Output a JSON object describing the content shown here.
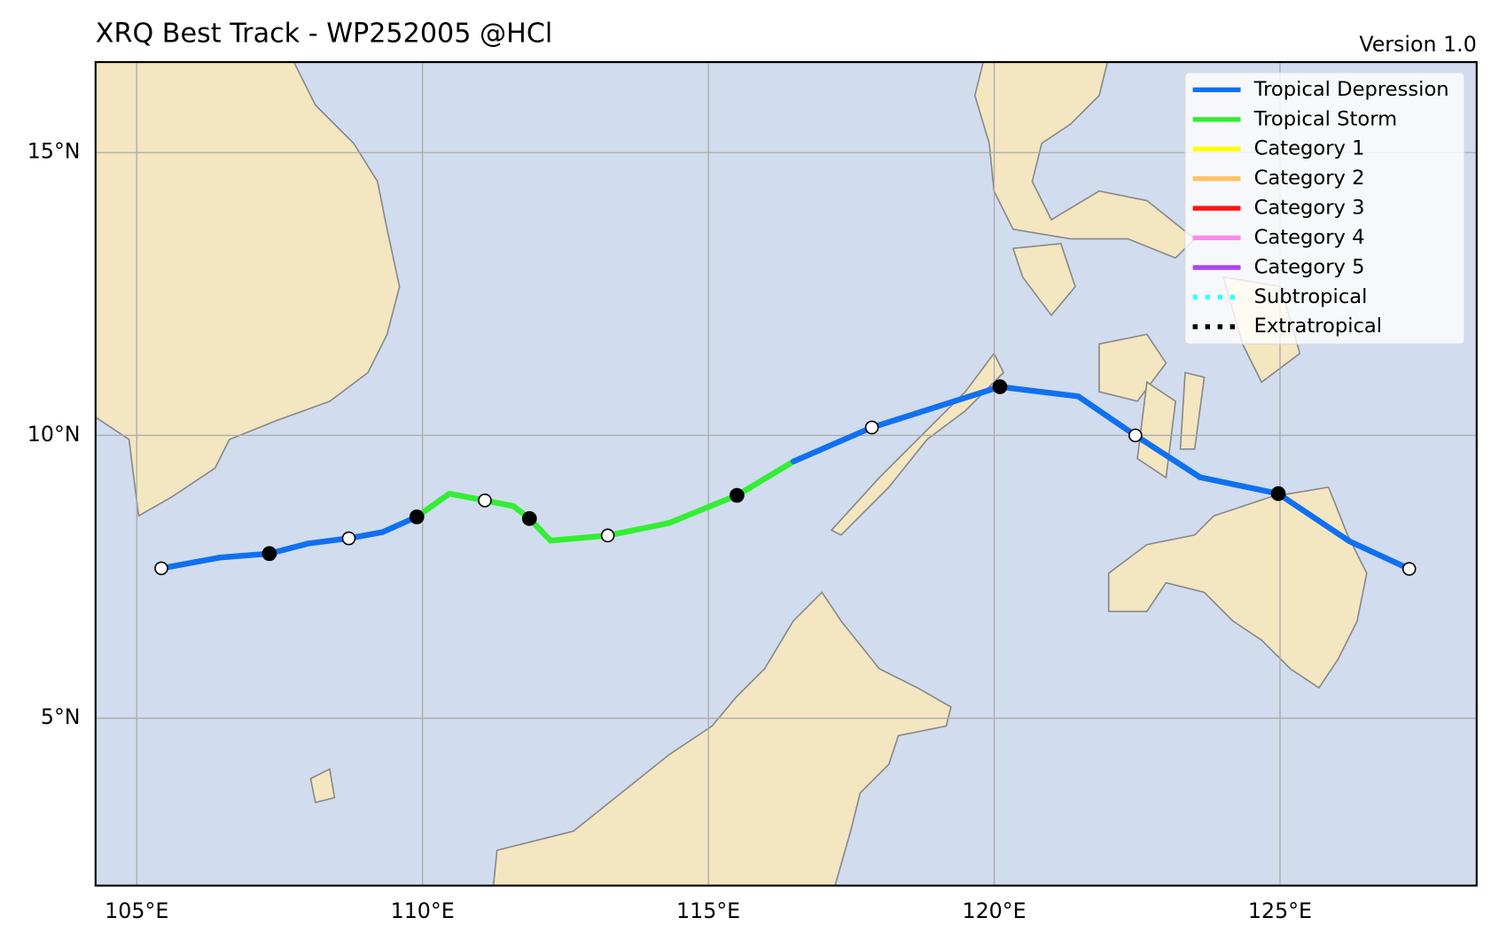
{
  "header": {
    "title": "XRQ Best Track - WP252005  @HCl",
    "version": "Version 1.0"
  },
  "map": {
    "lon_range": [
      104.28,
      128.44
    ],
    "lat_range": [
      2.04,
      16.6
    ],
    "lon_ticks": [
      {
        "value": 105,
        "label": "105°E"
      },
      {
        "value": 110,
        "label": "110°E"
      },
      {
        "value": 115,
        "label": "115°E"
      },
      {
        "value": 120,
        "label": "120°E"
      },
      {
        "value": 125,
        "label": "125°E"
      }
    ],
    "lat_ticks": [
      {
        "value": 5,
        "label": "5°N"
      },
      {
        "value": 10,
        "label": "10°N"
      },
      {
        "value": 15,
        "label": "15°N"
      }
    ]
  },
  "legend": {
    "entries": [
      {
        "label": "Tropical Depression",
        "color": "#1070f0",
        "style": "solid"
      },
      {
        "label": "Tropical Storm",
        "color": "#33ee33",
        "style": "solid"
      },
      {
        "label": "Category 1",
        "color": "#ffff00",
        "style": "solid"
      },
      {
        "label": "Category 2",
        "color": "#ffc466",
        "style": "solid"
      },
      {
        "label": "Category 3",
        "color": "#ff1111",
        "style": "solid"
      },
      {
        "label": "Category 4",
        "color": "#ff88ee",
        "style": "solid"
      },
      {
        "label": "Category 5",
        "color": "#aa44ee",
        "style": "solid"
      },
      {
        "label": "Subtropical",
        "color": "#33ffff",
        "style": "dotted"
      },
      {
        "label": "Extratropical",
        "color": "#000000",
        "style": "dotted"
      }
    ]
  },
  "track": {
    "points": [
      {
        "lon": 105.43,
        "lat": 7.65,
        "stage": 0,
        "marker": "open"
      },
      {
        "lon": 106.45,
        "lat": 7.84,
        "stage": 0,
        "marker": "none"
      },
      {
        "lon": 107.32,
        "lat": 7.91,
        "stage": 0,
        "marker": "filled"
      },
      {
        "lon": 108.01,
        "lat": 8.09,
        "stage": 0,
        "marker": "none"
      },
      {
        "lon": 108.71,
        "lat": 8.18,
        "stage": 0,
        "marker": "open"
      },
      {
        "lon": 109.3,
        "lat": 8.29,
        "stage": 0,
        "marker": "none"
      },
      {
        "lon": 109.9,
        "lat": 8.56,
        "stage": 1,
        "marker": "filled"
      },
      {
        "lon": 110.47,
        "lat": 8.97,
        "stage": 1,
        "marker": "none"
      },
      {
        "lon": 111.09,
        "lat": 8.85,
        "stage": 1,
        "marker": "open"
      },
      {
        "lon": 111.59,
        "lat": 8.75,
        "stage": 1,
        "marker": "none"
      },
      {
        "lon": 111.87,
        "lat": 8.53,
        "stage": 1,
        "marker": "filled"
      },
      {
        "lon": 112.24,
        "lat": 8.14,
        "stage": 1,
        "marker": "none"
      },
      {
        "lon": 113.24,
        "lat": 8.23,
        "stage": 1,
        "marker": "open"
      },
      {
        "lon": 114.31,
        "lat": 8.45,
        "stage": 1,
        "marker": "none"
      },
      {
        "lon": 115.5,
        "lat": 8.94,
        "stage": 1,
        "marker": "filled"
      },
      {
        "lon": 116.49,
        "lat": 9.54,
        "stage": 0,
        "marker": "none"
      },
      {
        "lon": 117.86,
        "lat": 10.14,
        "stage": 0,
        "marker": "open"
      },
      {
        "lon": 120.1,
        "lat": 10.86,
        "stage": 0,
        "marker": "filled"
      },
      {
        "lon": 121.47,
        "lat": 10.69,
        "stage": 0,
        "marker": "none"
      },
      {
        "lon": 122.47,
        "lat": 10.0,
        "stage": 0,
        "marker": "open"
      },
      {
        "lon": 123.6,
        "lat": 9.26,
        "stage": 0,
        "marker": "none"
      },
      {
        "lon": 124.97,
        "lat": 8.97,
        "stage": 0,
        "marker": "filled"
      },
      {
        "lon": 126.21,
        "lat": 8.13,
        "stage": 0,
        "marker": "none"
      },
      {
        "lon": 127.26,
        "lat": 7.64,
        "stage": 0,
        "marker": "open"
      }
    ]
  }
}
